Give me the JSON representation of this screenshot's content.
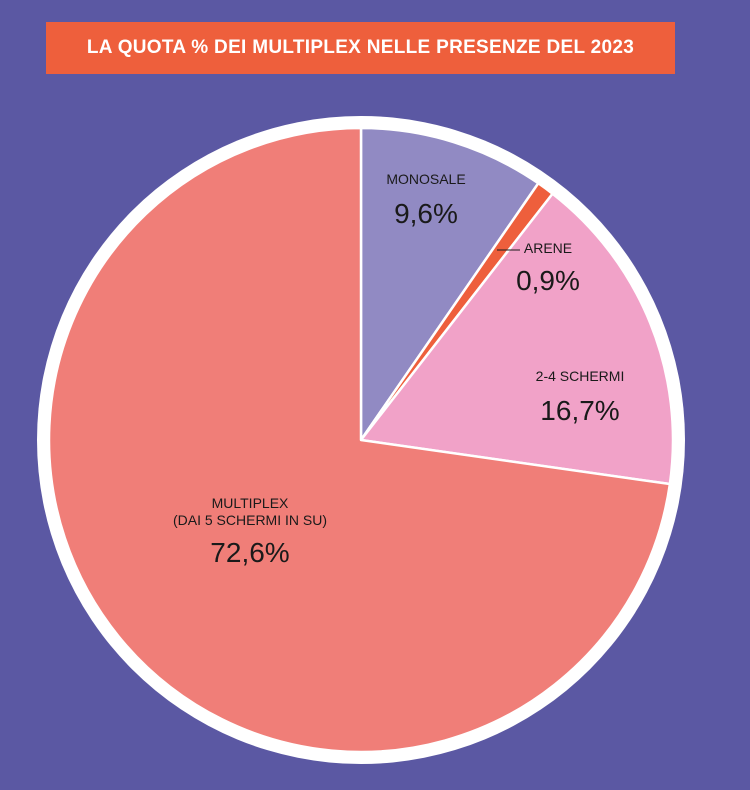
{
  "chart_data": {
    "type": "pie",
    "title": "LA QUOTA % DEI MULTIPLEX NELLE PRESENZE DEL 2023",
    "slices": [
      {
        "name_lines": [
          "MONOSALE"
        ],
        "value": 9.6,
        "value_label": "9,6%",
        "color": "#918ac3"
      },
      {
        "name_lines": [
          "ARENE"
        ],
        "value": 0.9,
        "value_label": "0,9%",
        "color": "#ee5f3c"
      },
      {
        "name_lines": [
          "2-4 SCHERMI"
        ],
        "value": 16.7,
        "value_label": "16,7%",
        "color": "#f1a2c8"
      },
      {
        "name_lines": [
          "MULTIPLEX",
          "(DAI 5 SCHERMI IN SU)"
        ],
        "value": 72.6,
        "value_label": "72,6%",
        "color": "#f07e78"
      }
    ]
  },
  "colors": {
    "background": "#5b58a3",
    "banner": "#ee5f3c",
    "outline": "#ffffff"
  }
}
